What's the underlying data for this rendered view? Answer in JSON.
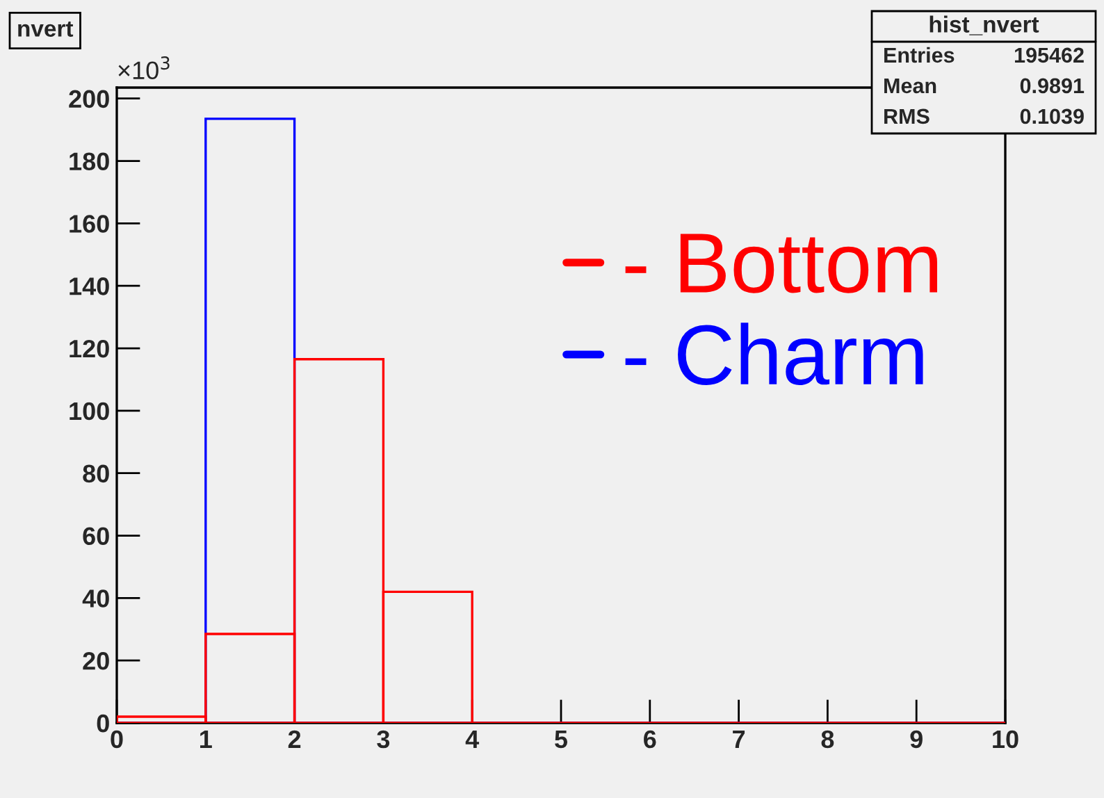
{
  "chart_data": {
    "type": "histogram",
    "title": "nvert",
    "bins": [
      0,
      1,
      2,
      3,
      4,
      5,
      6,
      7,
      8,
      9,
      10
    ],
    "series": [
      {
        "name": "- Bottom",
        "color": "#ff0000",
        "values": [
          2,
          28.5,
          116.5,
          42,
          0,
          0,
          0,
          0,
          0,
          0
        ]
      },
      {
        "name": "- Charm",
        "color": "#0000ff",
        "values": [
          0,
          193.5,
          0,
          0,
          0,
          0,
          0,
          0,
          0,
          0
        ]
      }
    ],
    "xlim": [
      0,
      10
    ],
    "xticks": [
      0,
      1,
      2,
      3,
      4,
      5,
      6,
      7,
      8,
      9,
      10
    ],
    "ylim": [
      0,
      203.5
    ],
    "yticks": [
      0,
      20,
      40,
      60,
      80,
      100,
      120,
      140,
      160,
      180,
      200
    ],
    "grid": false,
    "legend": "right",
    "annotations": [
      "×10$^{3}$",
      "hist_nvert",
      "Entries",
      "195462",
      "Mean",
      "0.9891",
      "RMS",
      "0.1039"
    ]
  }
}
